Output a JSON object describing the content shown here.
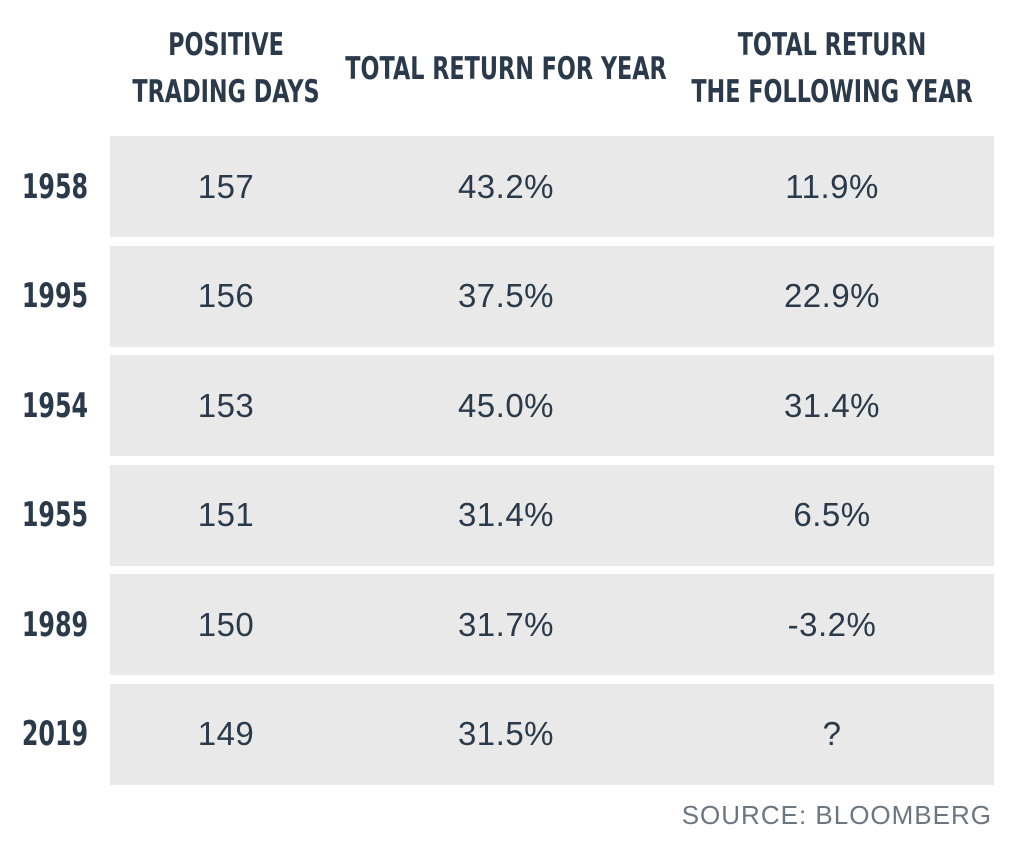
{
  "chart_data": {
    "type": "table",
    "columns": [
      [
        "POSITIVE",
        "TRADING DAYS"
      ],
      [
        "TOTAL RETURN FOR YEAR"
      ],
      [
        "TOTAL RETURN",
        "THE FOLLOWING YEAR"
      ]
    ],
    "rows": [
      {
        "year": "1958",
        "cells": [
          "157",
          "43.2%",
          "11.9%"
        ]
      },
      {
        "year": "1995",
        "cells": [
          "156",
          "37.5%",
          "22.9%"
        ]
      },
      {
        "year": "1954",
        "cells": [
          "153",
          "45.0%",
          "31.4%"
        ]
      },
      {
        "year": "1955",
        "cells": [
          "151",
          "31.4%",
          "6.5%"
        ]
      },
      {
        "year": "1989",
        "cells": [
          "150",
          "31.7%",
          "-3.2%"
        ]
      },
      {
        "year": "2019",
        "cells": [
          "149",
          "31.5%",
          "?"
        ]
      }
    ],
    "source": "SOURCE: BLOOMBERG",
    "colors": {
      "text": "#2b3a4a",
      "row_background": "#e9e9e9",
      "source_text": "#6b7680"
    }
  }
}
